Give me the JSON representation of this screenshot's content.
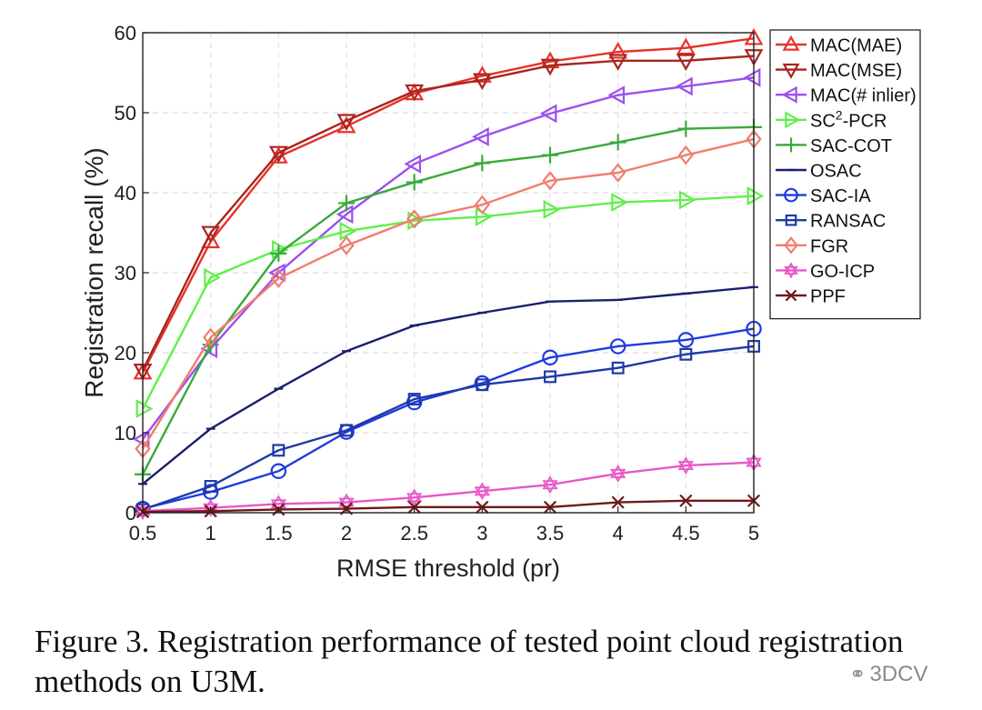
{
  "chart_data": {
    "type": "line",
    "xlabel": "RMSE threshold (pr)",
    "ylabel": "Registration recall (%)",
    "xlim": [
      0.5,
      5
    ],
    "ylim": [
      0,
      60
    ],
    "x": [
      0.5,
      1,
      1.5,
      2,
      2.5,
      3,
      3.5,
      4,
      4.5,
      5
    ],
    "x_tick_labels": [
      "0.5",
      "1",
      "1.5",
      "2",
      "2.5",
      "3",
      "3.5",
      "4",
      "4.5",
      "5"
    ],
    "y_ticks": [
      0,
      10,
      20,
      30,
      40,
      50,
      60
    ],
    "y_tick_labels": [
      "0",
      "10",
      "20",
      "30",
      "40",
      "50",
      "60"
    ],
    "grid": true,
    "legend_position": "right",
    "series": [
      {
        "name": "MAC(MAE)",
        "legend_label": "MAC(MAE)",
        "color": "#e8322a",
        "marker": "triangle-up",
        "values": [
          17.5,
          33.9,
          44.5,
          48.3,
          52.4,
          54.6,
          56.4,
          57.6,
          58.1,
          59.3
        ]
      },
      {
        "name": "MAC(MSE)",
        "legend_label": "MAC(MSE)",
        "color": "#a8251f",
        "marker": "triangle-down",
        "values": [
          17.8,
          35.0,
          45.0,
          49.0,
          52.7,
          54.1,
          55.9,
          56.5,
          56.5,
          57.1
        ]
      },
      {
        "name": "MAC(# inlier)",
        "legend_label": "MAC(# inlier)",
        "color": "#9b4ff0",
        "marker": "triangle-left",
        "values": [
          9.2,
          20.5,
          30.0,
          37.3,
          43.6,
          47.0,
          49.9,
          52.2,
          53.3,
          54.4
        ]
      },
      {
        "name": "SC2-PCR",
        "legend_label": "SC2-PCR",
        "legend_base": "SC",
        "legend_sup": "2",
        "legend_rest": "-PCR",
        "color": "#5ff04a",
        "marker": "triangle-right",
        "values": [
          13.0,
          29.4,
          32.9,
          35.2,
          36.5,
          37.0,
          37.9,
          38.8,
          39.1,
          39.6
        ]
      },
      {
        "name": "SAC-COT",
        "legend_label": "SAC-COT",
        "color": "#3aaa3a",
        "marker": "plus",
        "values": [
          4.8,
          21.0,
          32.4,
          38.7,
          41.3,
          43.7,
          44.7,
          46.3,
          48.0,
          48.2
        ]
      },
      {
        "name": "OSAC",
        "legend_label": "OSAC",
        "color": "#1a1f6e",
        "marker": "hline",
        "values": [
          3.6,
          10.5,
          15.5,
          20.2,
          23.4,
          25.0,
          26.4,
          26.6,
          27.4,
          28.2
        ]
      },
      {
        "name": "SAC-IA",
        "legend_label": "SAC-IA",
        "color": "#1f3be0",
        "marker": "circle",
        "values": [
          0.5,
          2.6,
          5.2,
          10.1,
          13.8,
          16.2,
          19.4,
          20.8,
          21.6,
          23.0
        ]
      },
      {
        "name": "RANSAC",
        "legend_label": "RANSAC",
        "color": "#1e3aa8",
        "marker": "square",
        "values": [
          0.4,
          3.3,
          7.8,
          10.3,
          14.2,
          16.0,
          17.0,
          18.1,
          19.8,
          20.8
        ]
      },
      {
        "name": "FGR",
        "legend_label": "FGR",
        "color": "#f07d6e",
        "marker": "diamond",
        "values": [
          8.0,
          21.9,
          29.3,
          33.4,
          36.7,
          38.5,
          41.5,
          42.5,
          44.7,
          46.7
        ]
      },
      {
        "name": "GO-ICP",
        "legend_label": "GO-ICP",
        "color": "#e857c8",
        "marker": "hexagram",
        "values": [
          0.2,
          0.6,
          1.1,
          1.3,
          1.9,
          2.7,
          3.5,
          4.9,
          5.9,
          6.3
        ]
      },
      {
        "name": "PPF",
        "legend_label": "PPF",
        "color": "#6e1a1a",
        "marker": "x",
        "values": [
          0.1,
          0.2,
          0.4,
          0.5,
          0.7,
          0.7,
          0.7,
          1.3,
          1.5,
          1.5
        ]
      }
    ]
  },
  "caption": {
    "text": "Figure 3. Registration performance of tested point cloud registration methods on U3M."
  },
  "watermark": {
    "text": "3DCV",
    "icon": "wechat-icon"
  }
}
